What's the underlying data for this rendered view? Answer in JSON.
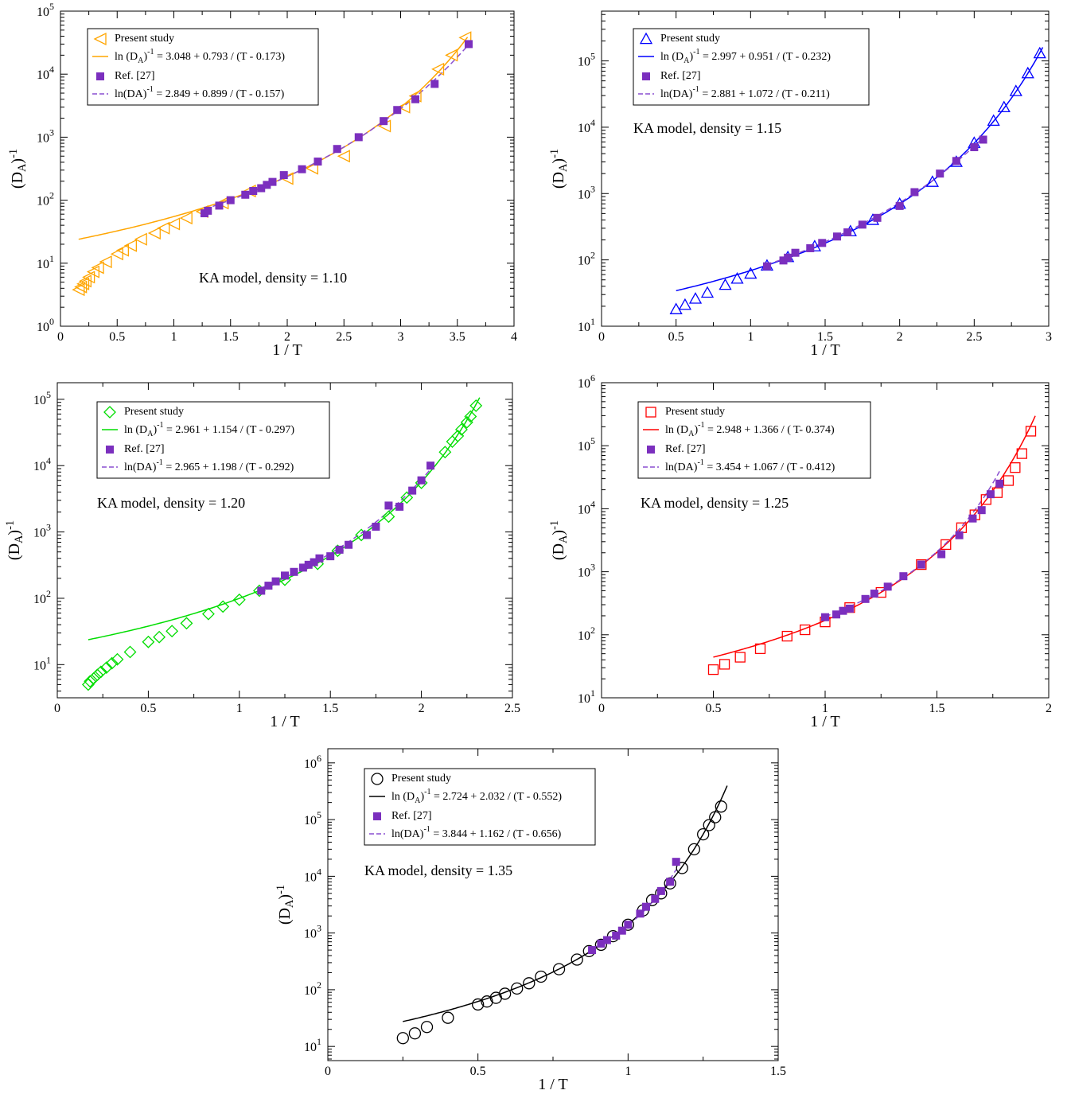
{
  "chart_data": [
    {
      "type": "scatter",
      "annotation": "KA model, density = 1.10",
      "xlabel": "1 / T",
      "ylabel": "(D_A)^-1",
      "xlim": [
        0,
        4
      ],
      "ylim_log10": [
        0,
        5
      ],
      "y_scale": "log",
      "xticks": [
        "0",
        "0.5",
        "1",
        "1.5",
        "2",
        "2.5",
        "3",
        "3.5",
        "4"
      ],
      "yticks_exp": [
        "0",
        "1",
        "2",
        "3",
        "4",
        "5"
      ],
      "legend": [
        "Present study",
        "ln (D_A)^-1 = 3.048 + 0.793 / (T - 0.173)",
        "Ref. [27]",
        "ln(DA)^-1 = 2.849 + 0.899 / (T - 0.157)"
      ],
      "colors": {
        "present": "#ffa500",
        "fit": "#ffa500",
        "ref": "#7b2fbe",
        "reffit": "#8a4fd0"
      },
      "marker": "triangle-left",
      "present_study": {
        "x": [
          0.16,
          0.18,
          0.2,
          0.22,
          0.25,
          0.29,
          0.33,
          0.4,
          0.5,
          0.55,
          0.62,
          0.71,
          0.83,
          0.91,
          1.0,
          1.11,
          1.25,
          1.43,
          1.67,
          2.0,
          2.22,
          2.5,
          2.86,
          3.03,
          3.13,
          3.33,
          3.45,
          3.57
        ],
        "y": [
          3.8,
          4.2,
          4.7,
          5.2,
          6.0,
          7.3,
          8.5,
          10.5,
          14,
          16,
          19,
          24,
          30,
          36,
          42,
          52,
          66,
          90,
          140,
          220,
          320,
          500,
          1500,
          3000,
          4500,
          12000,
          20000,
          38000
        ]
      },
      "ref27": {
        "x": [
          1.27,
          1.3,
          1.4,
          1.5,
          1.63,
          1.7,
          1.77,
          1.82,
          1.87,
          1.97,
          2.13,
          2.27,
          2.44,
          2.63,
          2.85,
          2.97,
          3.13,
          3.3,
          3.6
        ],
        "y": [
          62,
          68,
          82,
          100,
          122,
          140,
          155,
          175,
          195,
          250,
          310,
          410,
          650,
          1000,
          1800,
          2700,
          4000,
          7000,
          30000
        ]
      },
      "fit": {
        "A": 3.048,
        "B": 0.793,
        "T0": 0.173
      },
      "ref_fit": {
        "A": 2.849,
        "B": 0.899,
        "T0": 0.157
      }
    },
    {
      "type": "scatter",
      "annotation": "KA model, density = 1.15",
      "xlabel": "1 / T",
      "ylabel": "(D_A)^-1",
      "xlim": [
        0,
        3
      ],
      "ylim_log10": [
        1,
        5.75
      ],
      "y_scale": "log",
      "xticks": [
        "0",
        "0.5",
        "1",
        "1.5",
        "2",
        "2.5",
        "3"
      ],
      "yticks_exp": [
        "1",
        "2",
        "3",
        "4",
        "5"
      ],
      "legend": [
        "Present study",
        "ln (D_A)^-1 = 2.997 + 0.951 / (T - 0.232)",
        "Ref. [27]",
        "ln(DA)^-1 = 2.881 + 1.072 / (T - 0.211)"
      ],
      "colors": {
        "present": "#0000ff",
        "fit": "#0000ff",
        "ref": "#7b2fbe",
        "reffit": "#8a4fd0"
      },
      "marker": "triangle-up",
      "present_study": {
        "x": [
          0.5,
          0.56,
          0.63,
          0.71,
          0.83,
          0.91,
          1.0,
          1.11,
          1.25,
          1.43,
          1.67,
          1.82,
          2.0,
          2.22,
          2.38,
          2.5,
          2.63,
          2.7,
          2.78,
          2.86,
          2.94
        ],
        "y": [
          18,
          21,
          26,
          32,
          42,
          52,
          62,
          82,
          110,
          160,
          270,
          400,
          700,
          1500,
          3000,
          5800,
          12500,
          20000,
          35000,
          65000,
          130000
        ]
      },
      "ref27": {
        "x": [
          1.11,
          1.22,
          1.25,
          1.3,
          1.4,
          1.48,
          1.58,
          1.65,
          1.75,
          1.85,
          2.0,
          2.1,
          2.27,
          2.38,
          2.5,
          2.56
        ],
        "y": [
          80,
          98,
          108,
          128,
          150,
          180,
          225,
          260,
          340,
          430,
          650,
          1050,
          2000,
          3100,
          5000,
          6500
        ]
      },
      "fit": {
        "A": 2.997,
        "B": 0.951,
        "T0": 0.232
      },
      "ref_fit": {
        "A": 2.881,
        "B": 1.072,
        "T0": 0.211
      }
    },
    {
      "type": "scatter",
      "annotation": "KA model, density = 1.20",
      "xlabel": "1 / T",
      "ylabel": "(D_A)^-1",
      "xlim": [
        0,
        2.5
      ],
      "ylim_log10": [
        0.5,
        5.25
      ],
      "y_scale": "log",
      "xticks": [
        "0",
        "0.5",
        "1",
        "1.5",
        "2",
        "2.5"
      ],
      "yticks_exp": [
        "1",
        "2",
        "3",
        "4",
        "5"
      ],
      "legend": [
        "Present study",
        "ln (D_A)^-1 = 2.961 + 1.154 / (T - 0.297)",
        "Ref. [27]",
        "ln(DA)^-1 = 2.965 + 1.198 / (T - 0.292)"
      ],
      "colors": {
        "present": "#00dd00",
        "fit": "#00dd00",
        "ref": "#7b2fbe",
        "reffit": "#8a4fd0"
      },
      "marker": "diamond",
      "present_study": {
        "x": [
          0.17,
          0.18,
          0.2,
          0.22,
          0.24,
          0.27,
          0.3,
          0.33,
          0.4,
          0.5,
          0.56,
          0.63,
          0.71,
          0.83,
          0.91,
          1.0,
          1.11,
          1.25,
          1.43,
          1.54,
          1.67,
          1.82,
          1.92,
          2.0,
          2.13,
          2.17,
          2.2,
          2.22,
          2.25,
          2.27,
          2.3
        ],
        "y": [
          5,
          5.6,
          6.2,
          7,
          7.8,
          9,
          10.5,
          12,
          15.5,
          22,
          26,
          32,
          42,
          58,
          75,
          95,
          130,
          190,
          330,
          520,
          900,
          1700,
          3300,
          5500,
          16000,
          23000,
          28000,
          35000,
          45000,
          55000,
          80000
        ]
      },
      "ref27": {
        "x": [
          1.12,
          1.16,
          1.2,
          1.25,
          1.3,
          1.35,
          1.38,
          1.41,
          1.44,
          1.5,
          1.55,
          1.6,
          1.7,
          1.75,
          1.82,
          1.88,
          1.95,
          2.0,
          2.05
        ],
        "y": [
          130,
          155,
          180,
          220,
          250,
          290,
          320,
          350,
          400,
          430,
          540,
          640,
          900,
          1200,
          2500,
          2400,
          4200,
          6000,
          10000
        ]
      },
      "fit": {
        "A": 2.961,
        "B": 1.154,
        "T0": 0.297
      },
      "ref_fit": {
        "A": 2.965,
        "B": 1.198,
        "T0": 0.292
      }
    },
    {
      "type": "scatter",
      "annotation": "KA model, density = 1.25",
      "xlabel": "1 / T",
      "ylabel": "(D_A)^-1",
      "xlim": [
        0,
        2
      ],
      "ylim_log10": [
        1,
        6
      ],
      "y_scale": "log",
      "xticks": [
        "0",
        "0.5",
        "1",
        "1.5",
        "2"
      ],
      "yticks_exp": [
        "1",
        "2",
        "3",
        "4",
        "5",
        "6"
      ],
      "legend": [
        "Present study",
        "ln (D_A)^-1 = 2.948 + 1.366 / ( T- 0.374)",
        "Ref. [27]",
        "ln(DA)^-1 = 3.454 + 1.067 / (T - 0.412)"
      ],
      "colors": {
        "present": "#ff0000",
        "fit": "#ff0000",
        "ref": "#7b2fbe",
        "reffit": "#8a4fd0"
      },
      "marker": "square",
      "present_study": {
        "x": [
          0.5,
          0.55,
          0.62,
          0.71,
          0.83,
          0.91,
          1.0,
          1.11,
          1.25,
          1.43,
          1.54,
          1.61,
          1.67,
          1.72,
          1.77,
          1.82,
          1.85,
          1.88,
          1.92
        ],
        "y": [
          28,
          34,
          44,
          60,
          95,
          120,
          160,
          270,
          470,
          1300,
          2700,
          5000,
          8000,
          14000,
          18000,
          28000,
          45000,
          75000,
          170000
        ]
      },
      "ref27": {
        "x": [
          1.0,
          1.05,
          1.08,
          1.11,
          1.18,
          1.22,
          1.28,
          1.35,
          1.43,
          1.52,
          1.6,
          1.66,
          1.7,
          1.74,
          1.78
        ],
        "y": [
          190,
          210,
          240,
          260,
          370,
          450,
          580,
          850,
          1300,
          1900,
          3800,
          7000,
          9500,
          17000,
          25000
        ]
      },
      "fit": {
        "A": 2.948,
        "B": 1.366,
        "T0": 0.374
      },
      "ref_fit": {
        "A": 3.454,
        "B": 1.067,
        "T0": 0.412
      }
    },
    {
      "type": "scatter",
      "annotation": "KA model, density = 1.35",
      "xlabel": "1 / T",
      "ylabel": "(D_A)^-1",
      "xlim": [
        0,
        1.5
      ],
      "ylim_log10": [
        0.75,
        6.25
      ],
      "y_scale": "log",
      "xticks": [
        "0",
        "0.5",
        "1",
        "1.5"
      ],
      "yticks_exp": [
        "1",
        "2",
        "3",
        "4",
        "5",
        "6"
      ],
      "legend": [
        "Present study",
        "ln (D_A)^-1 = 2.724 + 2.032 / (T - 0.552)",
        "Ref. [27]",
        "ln(DA)^-1 = 3.844 + 1.162 / (T - 0.656)"
      ],
      "colors": {
        "present": "#000000",
        "fit": "#000000",
        "ref": "#7b2fbe",
        "reffit": "#8a4fd0"
      },
      "marker": "circle",
      "present_study": {
        "x": [
          0.25,
          0.29,
          0.33,
          0.4,
          0.5,
          0.53,
          0.56,
          0.59,
          0.63,
          0.67,
          0.71,
          0.77,
          0.83,
          0.87,
          0.91,
          0.95,
          1.0,
          1.05,
          1.08,
          1.11,
          1.14,
          1.18,
          1.22,
          1.25,
          1.27,
          1.29,
          1.31
        ],
        "y": [
          14,
          17,
          22,
          32,
          55,
          62,
          72,
          85,
          105,
          130,
          170,
          230,
          340,
          480,
          620,
          880,
          1400,
          2500,
          3800,
          5000,
          7500,
          14000,
          30000,
          55000,
          80000,
          110000,
          170000
        ]
      },
      "ref27": {
        "x": [
          0.88,
          0.91,
          0.93,
          0.96,
          0.98,
          1.0,
          1.04,
          1.06,
          1.09,
          1.11,
          1.14,
          1.16
        ],
        "y": [
          500,
          650,
          750,
          900,
          1100,
          1400,
          2200,
          2900,
          4000,
          5500,
          8000,
          18000
        ]
      },
      "fit": {
        "A": 2.724,
        "B": 2.032,
        "T0": 0.552
      },
      "ref_fit": {
        "A": 3.844,
        "B": 1.162,
        "T0": 0.656
      }
    }
  ]
}
